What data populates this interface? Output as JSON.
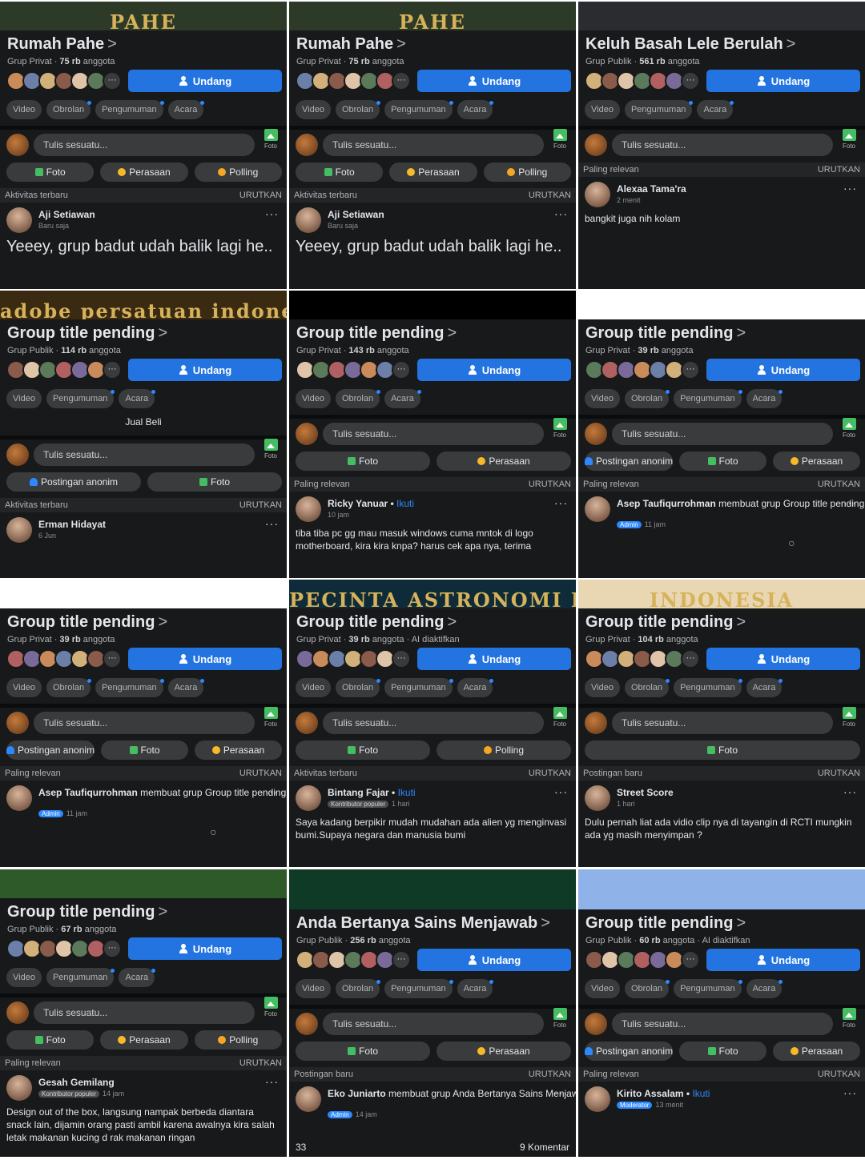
{
  "common": {
    "invite": "Undang",
    "write": "Tulis sesuatu...",
    "photo": "Foto",
    "sort": "URUTKAN",
    "more": "···",
    "chevron": ">",
    "like_icon": "thumb-up",
    "comment_icon": "comment-bubble"
  },
  "tiles": [
    {
      "banner": "PAHE",
      "title": "Rumah Pahe",
      "privacy": "Grup Privat",
      "members": "75 rb",
      "members_label": "anggota",
      "extra": "",
      "tabs": [
        "Video",
        "Obrolan",
        "Pengumuman",
        "Acara"
      ],
      "note": "",
      "actions": [
        {
          "label": "Foto",
          "icon": "foto"
        },
        {
          "label": "Perasaan",
          "icon": "feel"
        },
        {
          "label": "Polling",
          "icon": "poll"
        }
      ],
      "sort": "Aktivitas terbaru",
      "post": {
        "name": "Aji Setiawan",
        "tail": "",
        "join": "",
        "badge": "",
        "time": "Baru saja",
        "text": "Yeeey, grup badut udah balik lagi he..",
        "big": true,
        "comments": "",
        "likes": ""
      }
    },
    {
      "banner": "PAHE",
      "title": "Rumah Pahe",
      "privacy": "Grup Privat",
      "members": "75 rb",
      "members_label": "anggota",
      "extra": "",
      "tabs": [
        "Video",
        "Obrolan",
        "Pengumuman",
        "Acara"
      ],
      "note": "",
      "actions": [
        {
          "label": "Foto",
          "icon": "foto"
        },
        {
          "label": "Perasaan",
          "icon": "feel"
        },
        {
          "label": "Polling",
          "icon": "poll"
        }
      ],
      "sort": "Aktivitas terbaru",
      "post": {
        "name": "Aji Setiawan",
        "tail": "",
        "join": "",
        "badge": "",
        "time": "Baru saja",
        "text": "Yeeey, grup badut udah balik lagi he..",
        "big": true,
        "comments": "",
        "likes": ""
      }
    },
    {
      "banner": "",
      "title": "Keluh Basah Lele Berulah",
      "privacy": "Grup Publik",
      "members": "561 rb",
      "members_label": "anggota",
      "extra": "",
      "tabs": [
        "Video",
        "Pengumuman",
        "Acara"
      ],
      "note": "",
      "actions": [],
      "sort": "Paling relevan",
      "post": {
        "name": "Alexaa Tama'ra",
        "tail": "",
        "join": "",
        "badge": "",
        "time": "2 menit",
        "text": "bangkit juga nih kolam",
        "big": false,
        "comments": "",
        "likes": ""
      }
    },
    {
      "banner": "adobe persatuan indonesia",
      "title": "Group title pending",
      "privacy": "Grup Publik",
      "members": "114 rb",
      "members_label": "anggota",
      "extra": "",
      "tabs": [
        "Video",
        "Pengumuman",
        "Acara"
      ],
      "note": "Jual Beli",
      "actions": [
        {
          "label": "Postingan anonim",
          "icon": "anon"
        },
        {
          "label": "Foto",
          "icon": "foto"
        }
      ],
      "sort": "Aktivitas terbaru",
      "post": {
        "name": "Erman Hidayat",
        "tail": "",
        "join": "",
        "badge": "",
        "time": "6 Jun",
        "text": "",
        "big": false,
        "comments": "",
        "likes": ""
      }
    },
    {
      "banner": "",
      "title": "Group title pending",
      "privacy": "Grup Privat",
      "members": "143 rb",
      "members_label": "anggota",
      "extra": "",
      "tabs": [
        "Video",
        "Obrolan",
        "Acara"
      ],
      "note": "",
      "actions": [
        {
          "label": "Foto",
          "icon": "foto"
        },
        {
          "label": "Perasaan",
          "icon": "feel"
        }
      ],
      "sort": "Paling relevan",
      "post": {
        "name": "Ricky Yanuar",
        "tail": "",
        "join": "Ikuti",
        "badge": "",
        "time": "10 jam",
        "text": "tiba tiba pc gg mau masuk windows cuma mntok di logo motherboard, kira kira knpa? harus cek apa nya, terima",
        "big": false,
        "comments": "",
        "likes": ""
      }
    },
    {
      "banner": "",
      "title": "Group title pending",
      "privacy": "Grup Privat",
      "members": "39 rb",
      "members_label": "anggota",
      "extra": "",
      "tabs": [
        "Video",
        "Obrolan",
        "Pengumuman",
        "Acara"
      ],
      "note": "",
      "actions": [
        {
          "label": "Postingan anonim",
          "icon": "anon"
        },
        {
          "label": "Foto",
          "icon": "foto"
        },
        {
          "label": "Perasaan",
          "icon": "feel"
        }
      ],
      "sort": "Paling relevan",
      "post": {
        "name": "Asep Taufiqurrohman",
        "tail": "membuat grup Group title pending.",
        "join": "",
        "badge": "Admin",
        "time": "11 jam",
        "text": "",
        "big": false,
        "comments": "",
        "likes": "",
        "reactions": true
      }
    },
    {
      "banner": "",
      "title": "Group title pending",
      "privacy": "Grup Privat",
      "members": "39 rb",
      "members_label": "anggota",
      "extra": "",
      "tabs": [
        "Video",
        "Obrolan",
        "Pengumuman",
        "Acara"
      ],
      "note": "",
      "actions": [
        {
          "label": "Postingan anonim",
          "icon": "anon"
        },
        {
          "label": "Foto",
          "icon": "foto"
        },
        {
          "label": "Perasaan",
          "icon": "feel"
        }
      ],
      "sort": "Paling relevan",
      "post": {
        "name": "Asep Taufiqurrohman",
        "tail": "membuat grup Group title pending.",
        "join": "",
        "badge": "Admin",
        "time": "11 jam",
        "text": "",
        "big": false,
        "comments": "",
        "likes": "",
        "reactions": true
      }
    },
    {
      "banner": "PECINTA ASTRONOMI INDONESIA",
      "title": "Group title pending",
      "privacy": "Grup Privat",
      "members": "39 rb",
      "members_label": "anggota",
      "extra": "AI diaktifkan",
      "tabs": [
        "Video",
        "Obrolan",
        "Pengumuman",
        "Acara"
      ],
      "note": "",
      "actions": [
        {
          "label": "Foto",
          "icon": "foto"
        },
        {
          "label": "Polling",
          "icon": "poll"
        }
      ],
      "sort": "Aktivitas terbaru",
      "post": {
        "name": "Bintang Fajar",
        "tail": "",
        "join": "Ikuti",
        "badge": "Kontributor populer",
        "time": "1 hari",
        "text": "Saya kadang berpikir mudah mudahan ada alien yg menginvasi bumi.Supaya negara dan manusia bumi",
        "big": false,
        "comments": "",
        "likes": ""
      }
    },
    {
      "banner": "INDONESIA",
      "title": "Group title pending",
      "privacy": "Grup Privat",
      "members": "104 rb",
      "members_label": "anggota",
      "extra": "",
      "tabs": [
        "Video",
        "Obrolan",
        "Pengumuman",
        "Acara"
      ],
      "note": "",
      "actions": [
        {
          "label": "Foto",
          "icon": "foto"
        }
      ],
      "sort": "Postingan baru",
      "post": {
        "name": "Street Score",
        "tail": "",
        "join": "",
        "badge": "",
        "time": "1 hari",
        "text": "Dulu pernah liat ada vidio clip nya di tayangin di RCTI mungkin ada yg masih menyimpan ?",
        "big": false,
        "comments": "",
        "likes": ""
      }
    },
    {
      "banner": "",
      "title": "Group title pending",
      "privacy": "Grup Publik",
      "members": "67 rb",
      "members_label": "anggota",
      "extra": "",
      "tabs": [
        "Video",
        "Pengumuman",
        "Acara"
      ],
      "note": "",
      "actions": [
        {
          "label": "Foto",
          "icon": "foto"
        },
        {
          "label": "Perasaan",
          "icon": "feel"
        },
        {
          "label": "Polling",
          "icon": "poll"
        }
      ],
      "sort": "Paling relevan",
      "post": {
        "name": "Gesah Gemilang",
        "tail": "",
        "join": "",
        "badge": "Kontributor populer",
        "time": "14 jam",
        "text": "Design out of the box, langsung nampak berbeda diantara snack lain, dijamin orang pasti ambil karena awalnya kira salah letak makanan kucing d rak makanan ringan",
        "big": false,
        "comments": "",
        "likes": ""
      }
    },
    {
      "banner": "",
      "title": "Anda Bertanya Sains Menjawab",
      "privacy": "Grup Publik",
      "members": "256 rb",
      "members_label": "anggota",
      "extra": "",
      "tabs": [
        "Video",
        "Obrolan",
        "Pengumuman",
        "Acara"
      ],
      "note": "",
      "actions": [
        {
          "label": "Foto",
          "icon": "foto"
        },
        {
          "label": "Perasaan",
          "icon": "feel"
        }
      ],
      "sort": "Postingan baru",
      "post": {
        "name": "Eko Juniarto",
        "tail": "membuat grup Anda Bertanya Sains Menjawab.",
        "join": "",
        "badge": "Admin",
        "time": "14 jam",
        "text": "",
        "big": false,
        "comments": "9 Komentar",
        "likes": "33"
      }
    },
    {
      "banner": "",
      "title": "Group title pending",
      "privacy": "Grup Publik",
      "members": "60 rb",
      "members_label": "anggota",
      "extra": "AI diaktifkan",
      "tabs": [
        "Video",
        "Obrolan",
        "Pengumuman",
        "Acara"
      ],
      "note": "",
      "actions": [
        {
          "label": "Postingan anonim",
          "icon": "anon"
        },
        {
          "label": "Foto",
          "icon": "foto"
        },
        {
          "label": "Perasaan",
          "icon": "feel"
        }
      ],
      "sort": "Paling relevan",
      "post": {
        "name": "Kirito Assalam",
        "tail": "",
        "join": "Ikuti",
        "badge": "Moderator",
        "time": "13 menit",
        "text": "",
        "big": false,
        "comments": "",
        "likes": ""
      }
    }
  ],
  "colors": {
    "background": "#18191a",
    "surface": "#3a3b3c",
    "accent": "#2374e1",
    "text": "#e4e6eb",
    "muted": "#b0b3b8"
  }
}
